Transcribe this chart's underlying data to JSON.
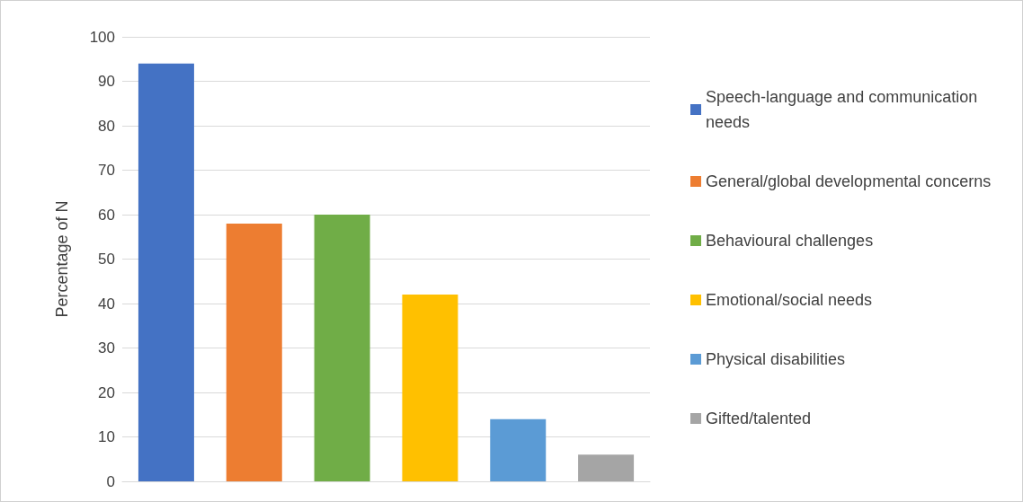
{
  "chart_data": {
    "type": "bar",
    "ylabel": "Percentage of N",
    "categories": [
      null,
      null,
      null,
      null,
      null,
      null
    ],
    "series": [
      {
        "name": "Speech-language and communication needs",
        "color": "#4472c4",
        "values": [
          94,
          null,
          null,
          null,
          null,
          null
        ]
      },
      {
        "name": "General/global developmental concerns",
        "color": "#ed7d31",
        "values": [
          null,
          58,
          null,
          null,
          null,
          null
        ]
      },
      {
        "name": "Behavioural challenges",
        "color": "#70ad47",
        "values": [
          null,
          null,
          60,
          null,
          null,
          null
        ]
      },
      {
        "name": "Emotional/social needs",
        "color": "#ffc000",
        "values": [
          null,
          null,
          null,
          42,
          null,
          null
        ]
      },
      {
        "name": "Physical disabilities",
        "color": "#5b9bd5",
        "values": [
          null,
          null,
          null,
          null,
          14,
          null
        ]
      },
      {
        "name": "Gifted/talented",
        "color": "#a5a5a5",
        "values": [
          null,
          null,
          null,
          null,
          null,
          6
        ]
      }
    ],
    "ylim": [
      0,
      100
    ],
    "yticks": [
      0,
      10,
      20,
      30,
      40,
      50,
      60,
      70,
      80,
      90,
      100
    ],
    "grid": "y",
    "legend": "right",
    "tick_labels": "y"
  }
}
